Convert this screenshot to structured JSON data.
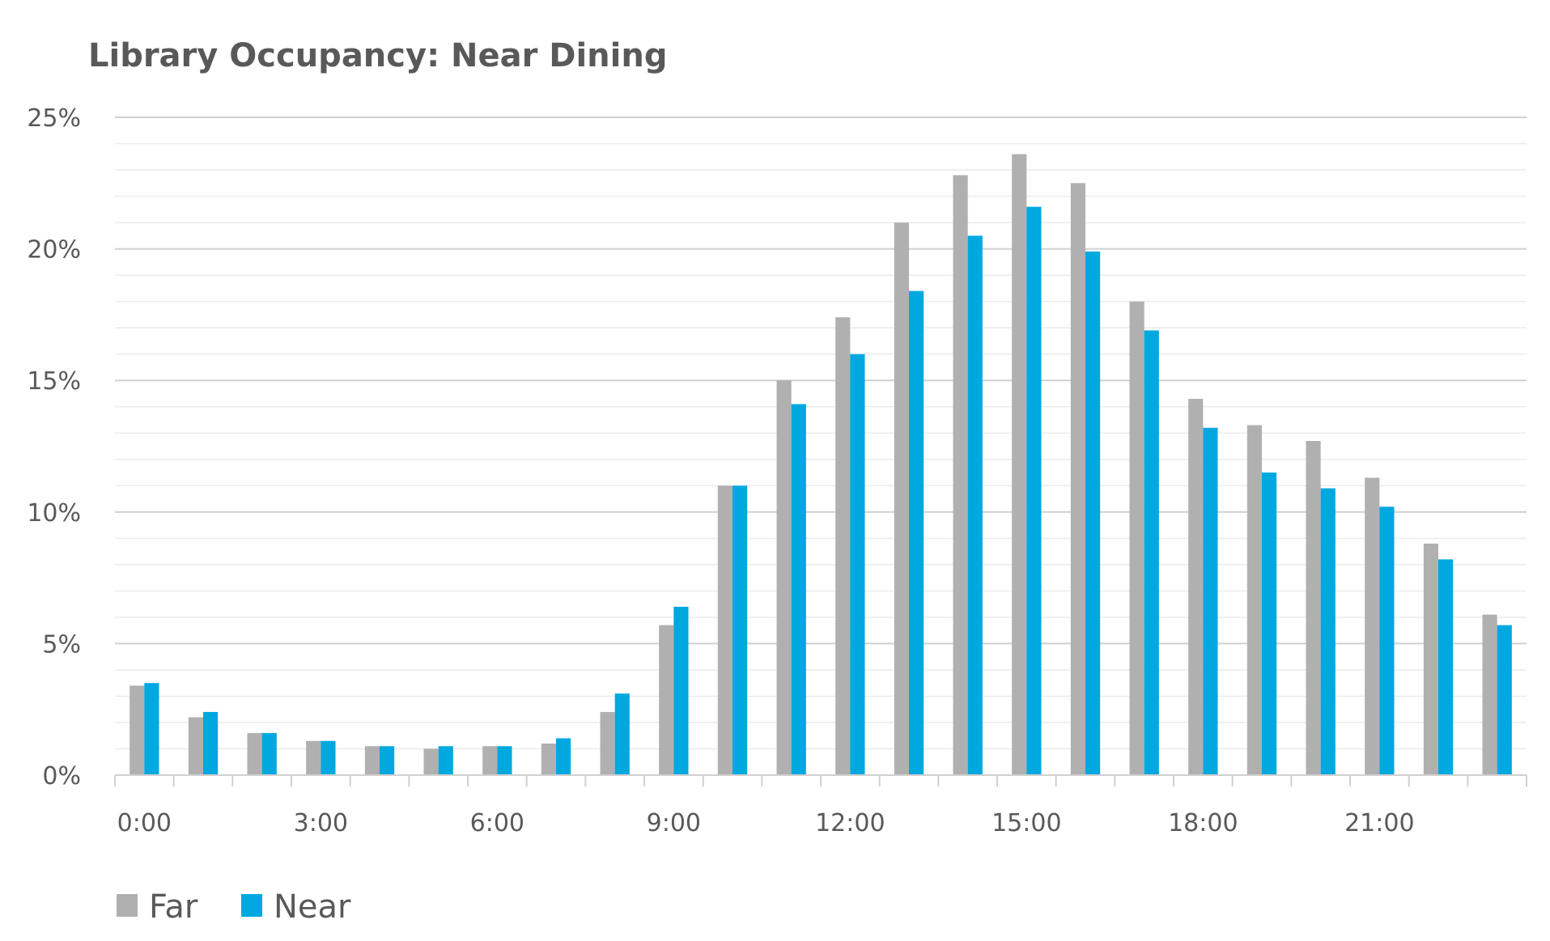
{
  "chart_data": {
    "type": "bar",
    "title": "Library Occupancy: Near Dining",
    "xlabel": "",
    "ylabel": "",
    "categories": [
      "0:00",
      "1:00",
      "2:00",
      "3:00",
      "4:00",
      "5:00",
      "6:00",
      "7:00",
      "8:00",
      "9:00",
      "10:00",
      "11:00",
      "12:00",
      "13:00",
      "14:00",
      "15:00",
      "16:00",
      "17:00",
      "18:00",
      "19:00",
      "20:00",
      "21:00",
      "22:00",
      "23:00"
    ],
    "x_tick_labels": [
      "0:00",
      "3:00",
      "6:00",
      "9:00",
      "12:00",
      "15:00",
      "18:00",
      "21:00"
    ],
    "y_tick_labels": [
      "0%",
      "5%",
      "10%",
      "15%",
      "20%",
      "25%"
    ],
    "ylim": [
      0,
      25
    ],
    "y_unit": "%",
    "grid": true,
    "legend_position": "bottom-left",
    "series": [
      {
        "name": "Far",
        "color": "#b0b0b0",
        "values": [
          3.4,
          2.2,
          1.6,
          1.3,
          1.1,
          1.0,
          1.1,
          1.2,
          2.4,
          5.7,
          11.0,
          15.0,
          17.4,
          21.0,
          22.8,
          23.6,
          22.5,
          18.0,
          14.3,
          13.3,
          12.7,
          11.3,
          8.8,
          6.1
        ]
      },
      {
        "name": "Near",
        "color": "#00a8e0",
        "values": [
          3.5,
          2.4,
          1.6,
          1.3,
          1.1,
          1.1,
          1.1,
          1.4,
          3.1,
          6.4,
          11.0,
          14.1,
          16.0,
          18.4,
          20.5,
          21.6,
          19.9,
          16.9,
          13.2,
          11.5,
          10.9,
          10.2,
          8.2,
          5.7
        ]
      }
    ]
  }
}
